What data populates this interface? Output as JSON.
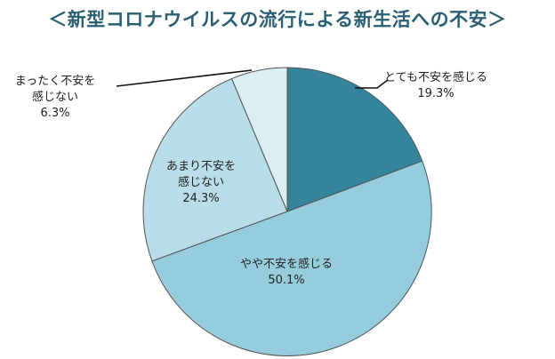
{
  "chart_data": {
    "type": "pie",
    "title": "＜新型コロナウイルスの流行による新生活への不安＞",
    "slices": [
      {
        "label": "とても不安を感じる",
        "value": 19.3,
        "value_label": "19.3%",
        "color": "#34849b"
      },
      {
        "label": "やや不安を感じる",
        "value": 50.1,
        "value_label": "50.1%",
        "color": "#96cddc"
      },
      {
        "label": "あまり不安を感じない",
        "value": 24.3,
        "value_label": "24.3%",
        "color": "#b8dde8"
      },
      {
        "label": "まったく不安を感じない",
        "value": 6.3,
        "value_label": "6.3%",
        "color": "#daeef4"
      }
    ],
    "start": "12 o'clock",
    "direction": "clockwise",
    "legend": "none"
  }
}
